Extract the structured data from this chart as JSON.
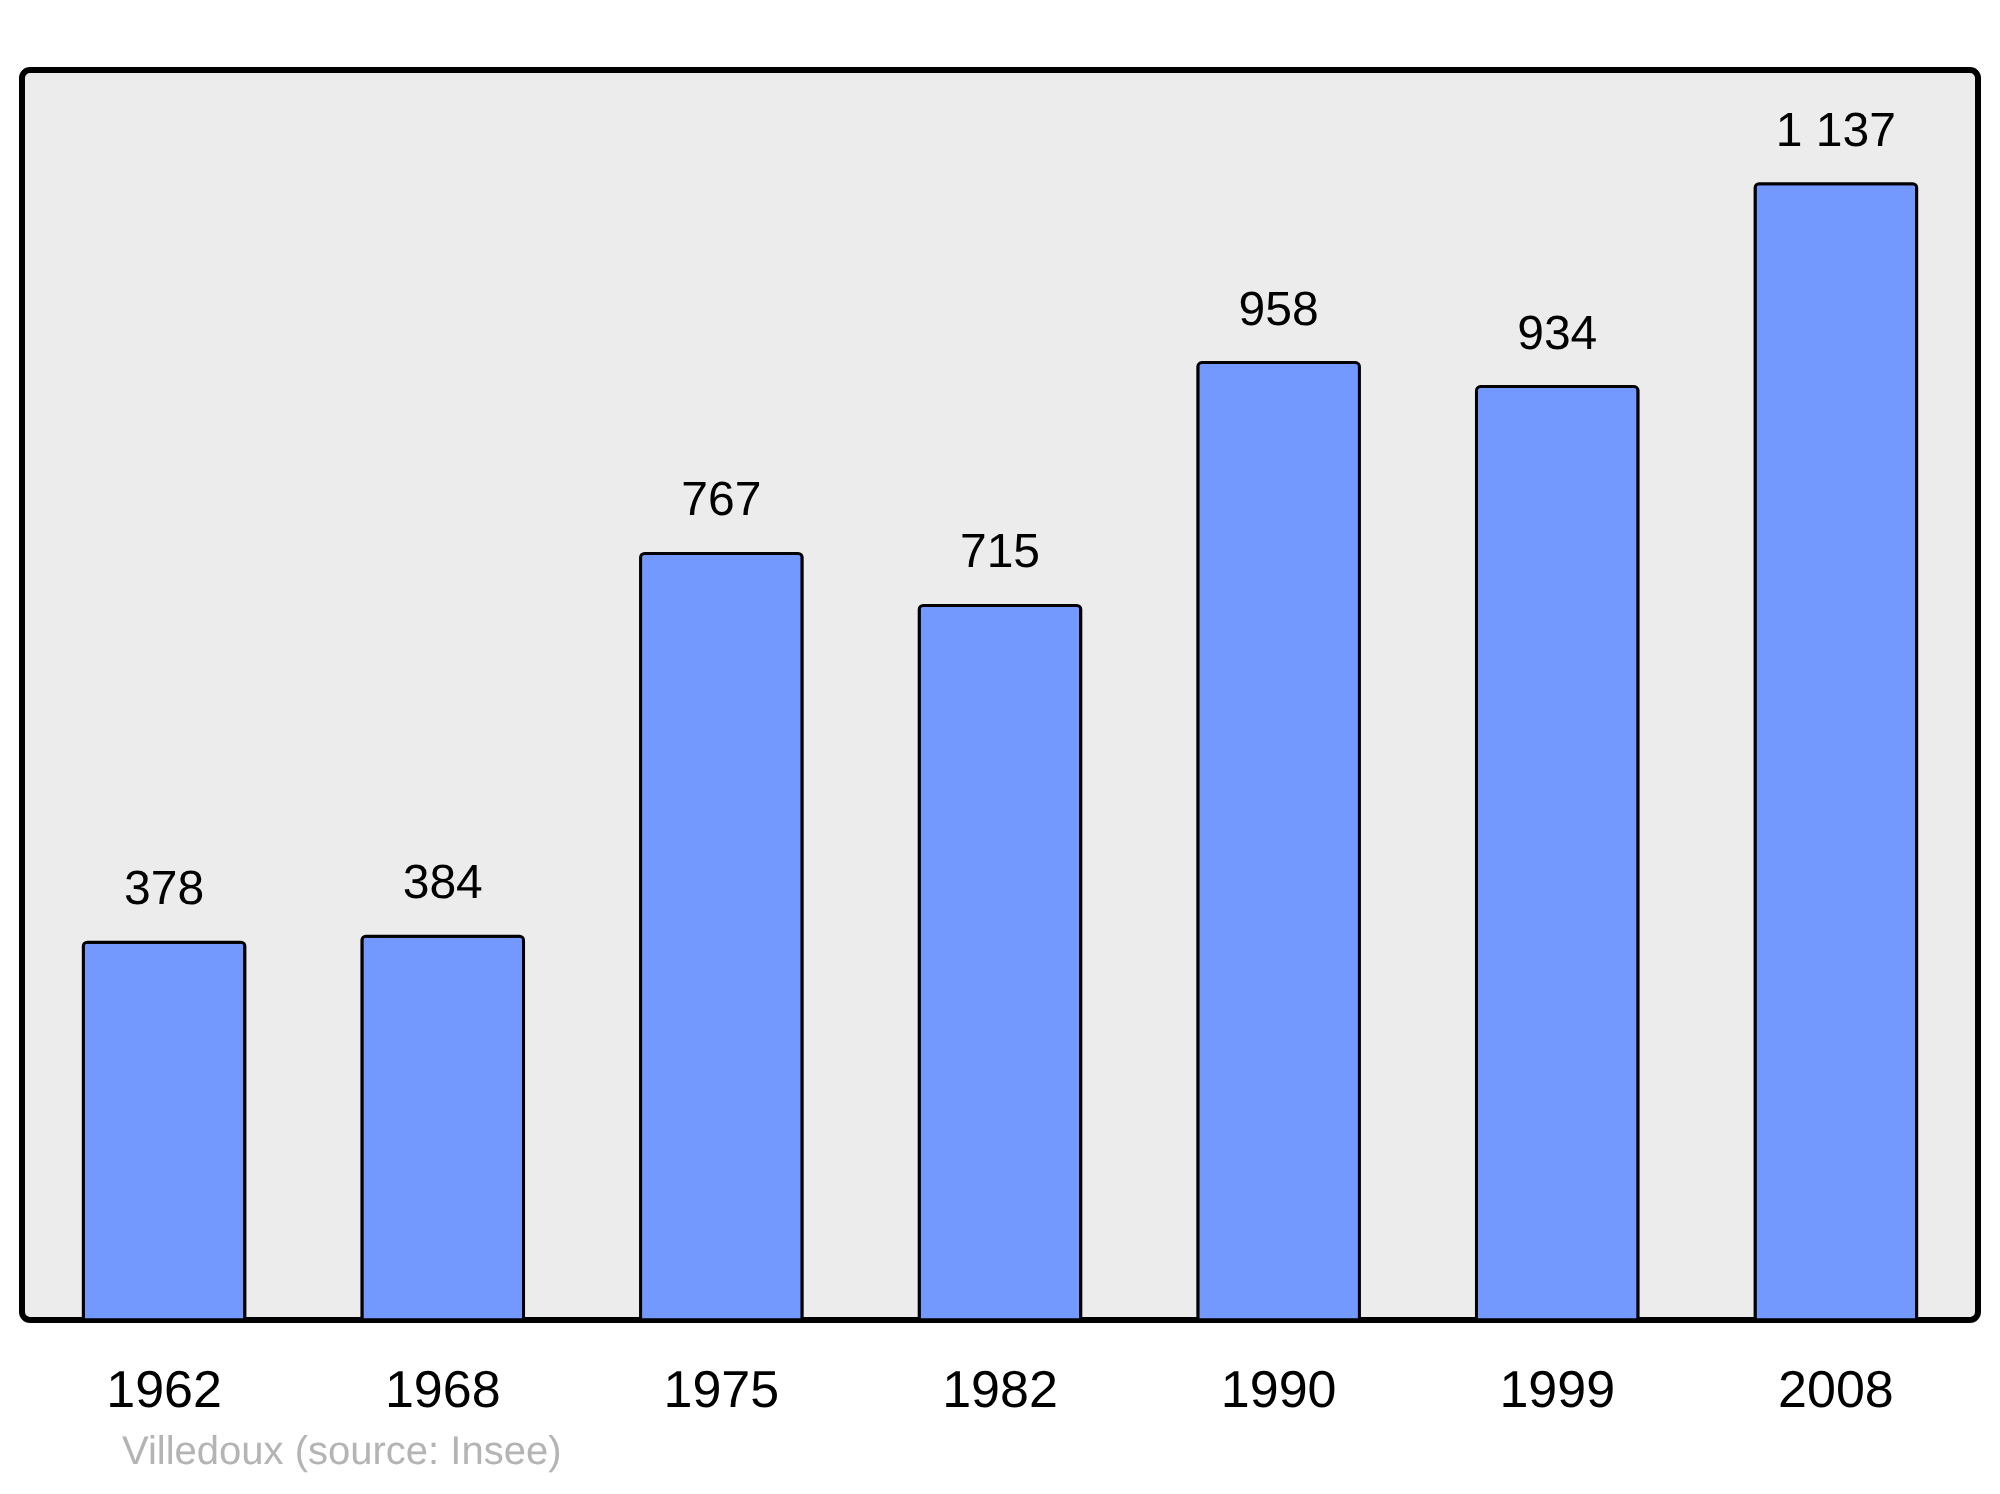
{
  "chart_data": {
    "type": "bar",
    "categories": [
      "1962",
      "1968",
      "1975",
      "1982",
      "1990",
      "1999",
      "2008"
    ],
    "values": [
      378,
      384,
      767,
      715,
      958,
      934,
      1137
    ],
    "value_labels": [
      "378",
      "384",
      "767",
      "715",
      "958",
      "934",
      "1 137"
    ],
    "color": "#7399ff",
    "annotations": [
      "Villedoux    (source: Insee)"
    ]
  }
}
